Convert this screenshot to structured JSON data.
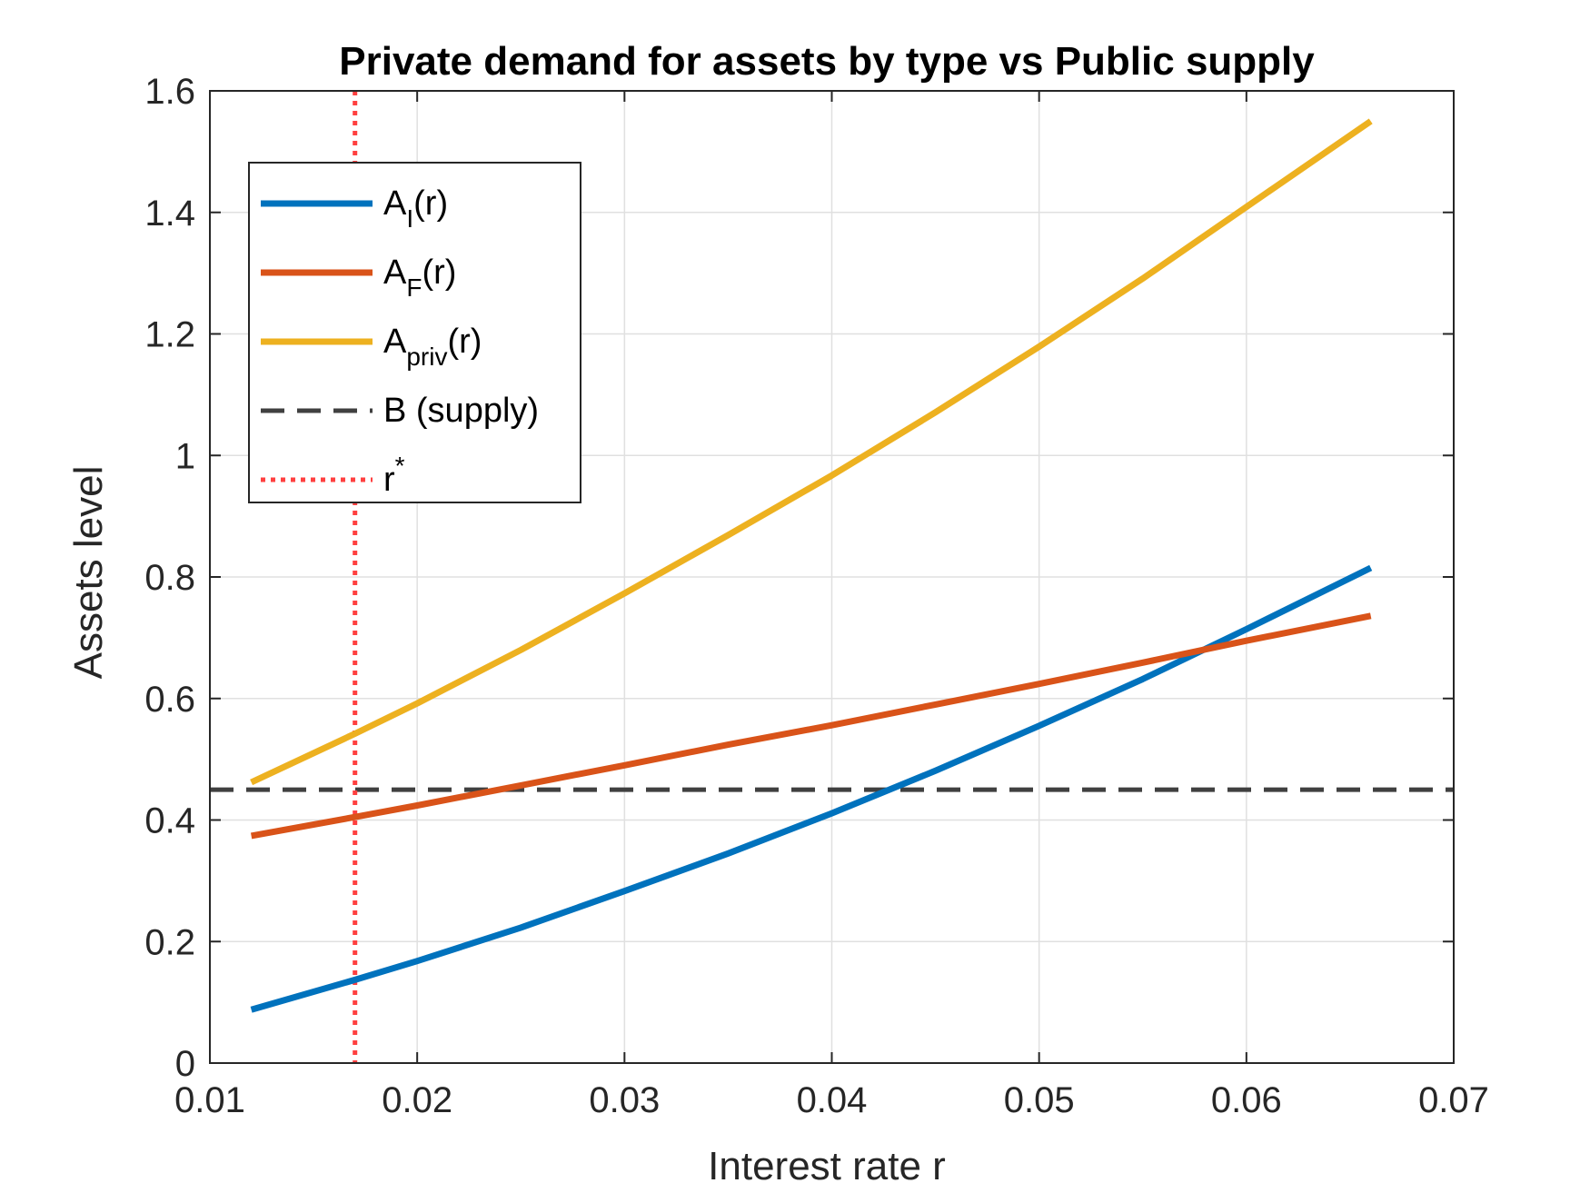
{
  "chart_data": {
    "type": "line",
    "title": "Private demand for assets by type vs Public supply",
    "xlabel": "Interest rate r",
    "ylabel": "Assets level",
    "xlim": [
      0.01,
      0.07
    ],
    "ylim": [
      0,
      1.6
    ],
    "xticks": [
      "0.01",
      "0.02",
      "0.03",
      "0.04",
      "0.05",
      "0.06",
      "0.07"
    ],
    "yticks": [
      "0",
      "0.2",
      "0.4",
      "0.6",
      "0.8",
      "1",
      "1.2",
      "1.4",
      "1.6"
    ],
    "grid": true,
    "legend_position": "top-left",
    "x": [
      0.012,
      0.017,
      0.02,
      0.025,
      0.03,
      0.035,
      0.04,
      0.045,
      0.05,
      0.055,
      0.06,
      0.066
    ],
    "series": [
      {
        "legend_main": "A",
        "legend_sub": "I",
        "legend_tail": "(r)",
        "color": "#0072BD",
        "style": "solid",
        "values": [
          0.088,
          0.137,
          0.168,
          0.223,
          0.283,
          0.345,
          0.411,
          0.481,
          0.555,
          0.632,
          0.714,
          0.815
        ]
      },
      {
        "legend_main": "A",
        "legend_sub": "F",
        "legend_tail": "(r)",
        "color": "#D95319",
        "style": "solid",
        "values": [
          0.374,
          0.405,
          0.424,
          0.457,
          0.49,
          0.524,
          0.556,
          0.59,
          0.624,
          0.659,
          0.695,
          0.736
        ]
      },
      {
        "legend_main": "A",
        "legend_sub": "priv",
        "legend_tail": "(r)",
        "color": "#EDB120",
        "style": "solid",
        "values": [
          0.462,
          0.542,
          0.592,
          0.68,
          0.773,
          0.869,
          0.967,
          1.071,
          1.179,
          1.291,
          1.409,
          1.55
        ]
      }
    ],
    "reference_lines": {
      "supply": {
        "label": "B (supply)",
        "y": 0.45,
        "color": "#404040",
        "style": "dashed"
      },
      "rstar": {
        "label_main": "r",
        "label_sup": "*",
        "x": 0.017,
        "color": "#FF4040",
        "style": "dotted"
      }
    }
  }
}
